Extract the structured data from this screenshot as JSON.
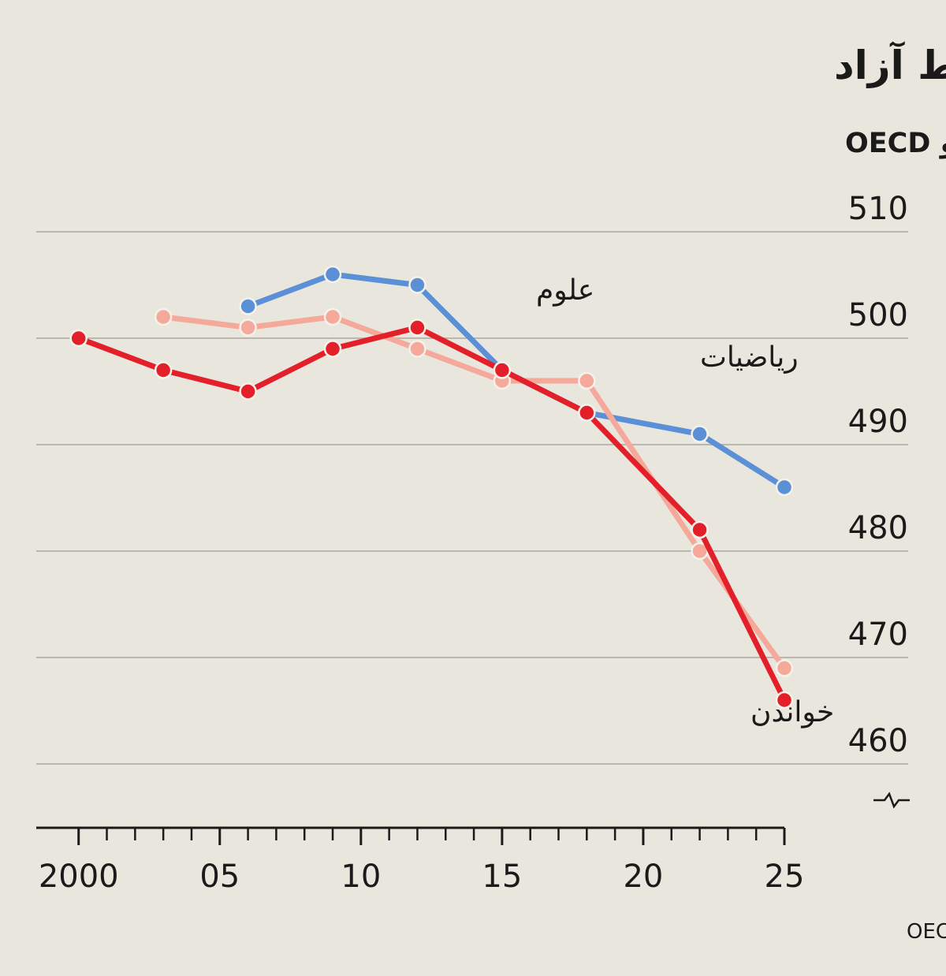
{
  "chart_data": {
    "type": "line",
    "title": "سقوط آزاد",
    "subtitle": "میانگین نمرات آزمون PISA در کشورهای عضو OECD",
    "source": "منبع:OECD",
    "x": [
      2000,
      2003,
      2006,
      2009,
      2012,
      2015,
      2018,
      2022,
      2025
    ],
    "series": [
      {
        "name": "علوم",
        "color": "#5b8fd6",
        "values": [
          null,
          null,
          503,
          506,
          505,
          497,
          493,
          491,
          486
        ]
      },
      {
        "name": "ریاضیات",
        "color": "#f4a99a",
        "values": [
          null,
          502,
          501,
          502,
          499,
          496,
          496,
          480,
          469
        ]
      },
      {
        "name": "خواندن",
        "color": "#e3202a",
        "values": [
          500,
          497,
          495,
          499,
          501,
          497,
          493,
          482,
          466
        ]
      }
    ],
    "xlim": [
      1998.5,
      2025
    ],
    "ylim": [
      454,
      512
    ],
    "xticks": [
      2000,
      {
        "value": 2005,
        "label": "05"
      },
      {
        "value": 2010,
        "label": "10"
      },
      {
        "value": 2015,
        "label": "15"
      },
      {
        "value": 2020,
        "label": "20"
      },
      {
        "value": 2025,
        "label": "25"
      }
    ],
    "xminorticks": [
      2001,
      2002,
      2003,
      2004,
      2006,
      2007,
      2008,
      2009,
      2011,
      2012,
      2013,
      2014,
      2016,
      2017,
      2018,
      2019,
      2021,
      2022,
      2023,
      2024
    ],
    "yticks": [
      460,
      470,
      480,
      490,
      500,
      510
    ],
    "grid": true
  }
}
